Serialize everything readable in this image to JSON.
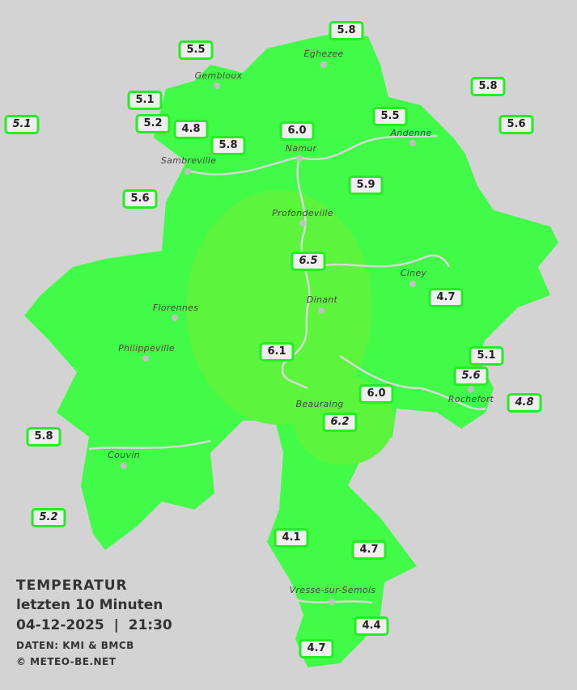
{
  "legend": {
    "title": "TEMPERATUR",
    "period": "letzten 10 Minuten",
    "datetime": "04-12-2025  |  21:30",
    "source": "DATEN: KMI & BMCB",
    "copyright": "© METEO-BE.NET"
  },
  "colors": {
    "background": "#d3d3d3",
    "region": "#41fb48",
    "warm_zone": "#5cf43c",
    "label_border": "#22ee22",
    "rivers": "#d8d8d8"
  },
  "towns": [
    "Eghezee",
    "Gembloux",
    "Andenne",
    "Sambreville",
    "Namur",
    "Profondeville",
    "Ciney",
    "Florennes",
    "Dinant",
    "Philippeville",
    "Rochefort",
    "Beauraing",
    "Couvin",
    "Vresse-sur-Semois"
  ],
  "stations": [
    {
      "value": "5.8",
      "italic": false
    },
    {
      "value": "5.5",
      "italic": false
    },
    {
      "value": "5.8",
      "italic": false
    },
    {
      "value": "5.1",
      "italic": false
    },
    {
      "value": "5.1",
      "italic": true
    },
    {
      "value": "5.2",
      "italic": false
    },
    {
      "value": "4.8",
      "italic": false
    },
    {
      "value": "6.0",
      "italic": false
    },
    {
      "value": "5.5",
      "italic": false
    },
    {
      "value": "5.6",
      "italic": false
    },
    {
      "value": "5.8",
      "italic": false
    },
    {
      "value": "5.9",
      "italic": false
    },
    {
      "value": "5.6",
      "italic": false
    },
    {
      "value": "6.5",
      "italic": true
    },
    {
      "value": "4.7",
      "italic": false
    },
    {
      "value": "6.1",
      "italic": false
    },
    {
      "value": "5.1",
      "italic": false
    },
    {
      "value": "5.6",
      "italic": true
    },
    {
      "value": "4.8",
      "italic": true
    },
    {
      "value": "6.0",
      "italic": false
    },
    {
      "value": "6.2",
      "italic": true
    },
    {
      "value": "5.8",
      "italic": false
    },
    {
      "value": "5.2",
      "italic": true
    },
    {
      "value": "4.1",
      "italic": false
    },
    {
      "value": "4.7",
      "italic": false
    },
    {
      "value": "4.4",
      "italic": false
    },
    {
      "value": "4.7",
      "italic": false
    }
  ]
}
